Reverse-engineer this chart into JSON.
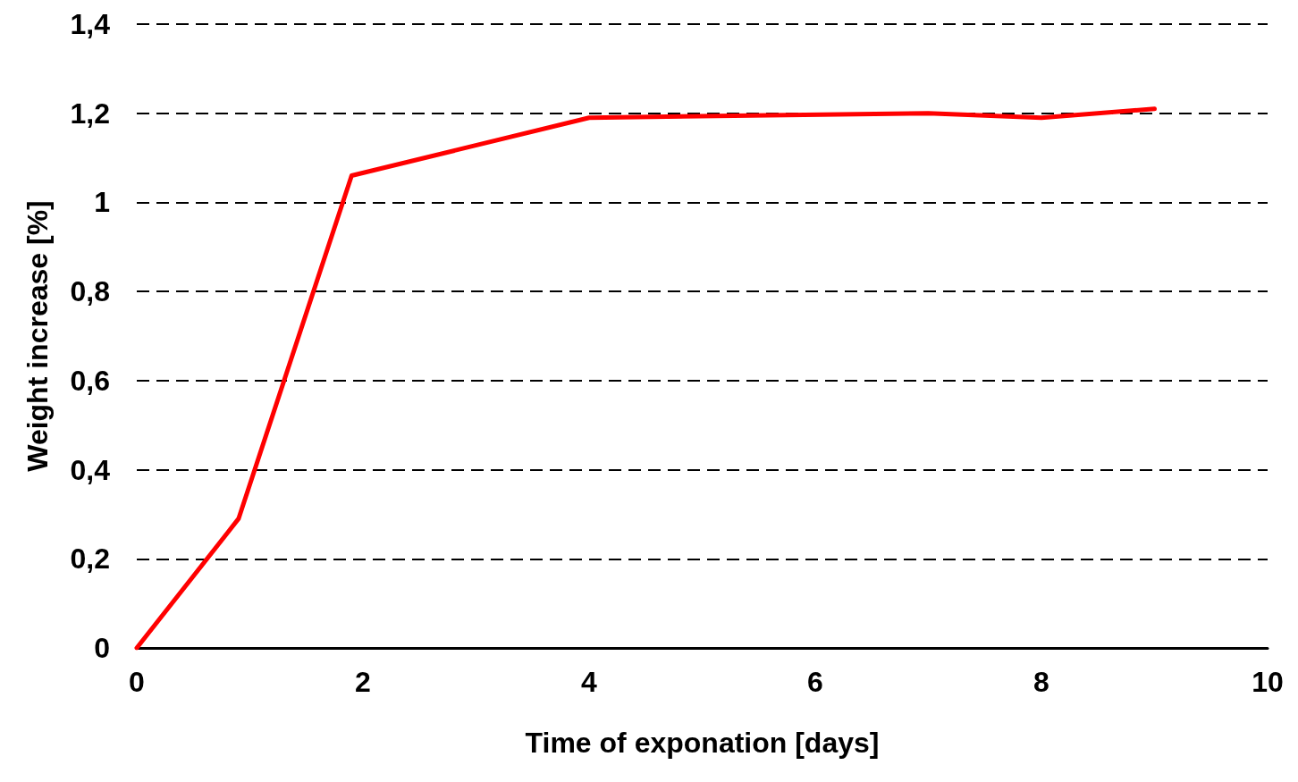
{
  "chart_data": {
    "type": "line",
    "xlabel": "Time of exponation [days]",
    "ylabel": "Weight increase [%]",
    "x": [
      0,
      0.9,
      1.9,
      4,
      7,
      8,
      9
    ],
    "series": [
      {
        "color": "#ff0000",
        "values": [
          0,
          0.29,
          1.06,
          1.19,
          1.2,
          1.19,
          1.21
        ]
      }
    ],
    "xlim": [
      0,
      10
    ],
    "xticks": [
      0,
      2,
      4,
      6,
      8,
      10
    ],
    "ylim": [
      0,
      1.4
    ],
    "yticks": [
      0,
      {
        "value": 0.2,
        "label": "0,2"
      },
      {
        "value": 0.4,
        "label": "0,4"
      },
      {
        "value": 0.6,
        "label": "0,6"
      },
      {
        "value": 0.8,
        "label": "0,8"
      },
      1,
      {
        "value": 1.2,
        "label": "1,2"
      },
      {
        "value": 1.4,
        "label": "1,4"
      }
    ],
    "grid": "y",
    "marker": "none",
    "line_style": "solid"
  }
}
